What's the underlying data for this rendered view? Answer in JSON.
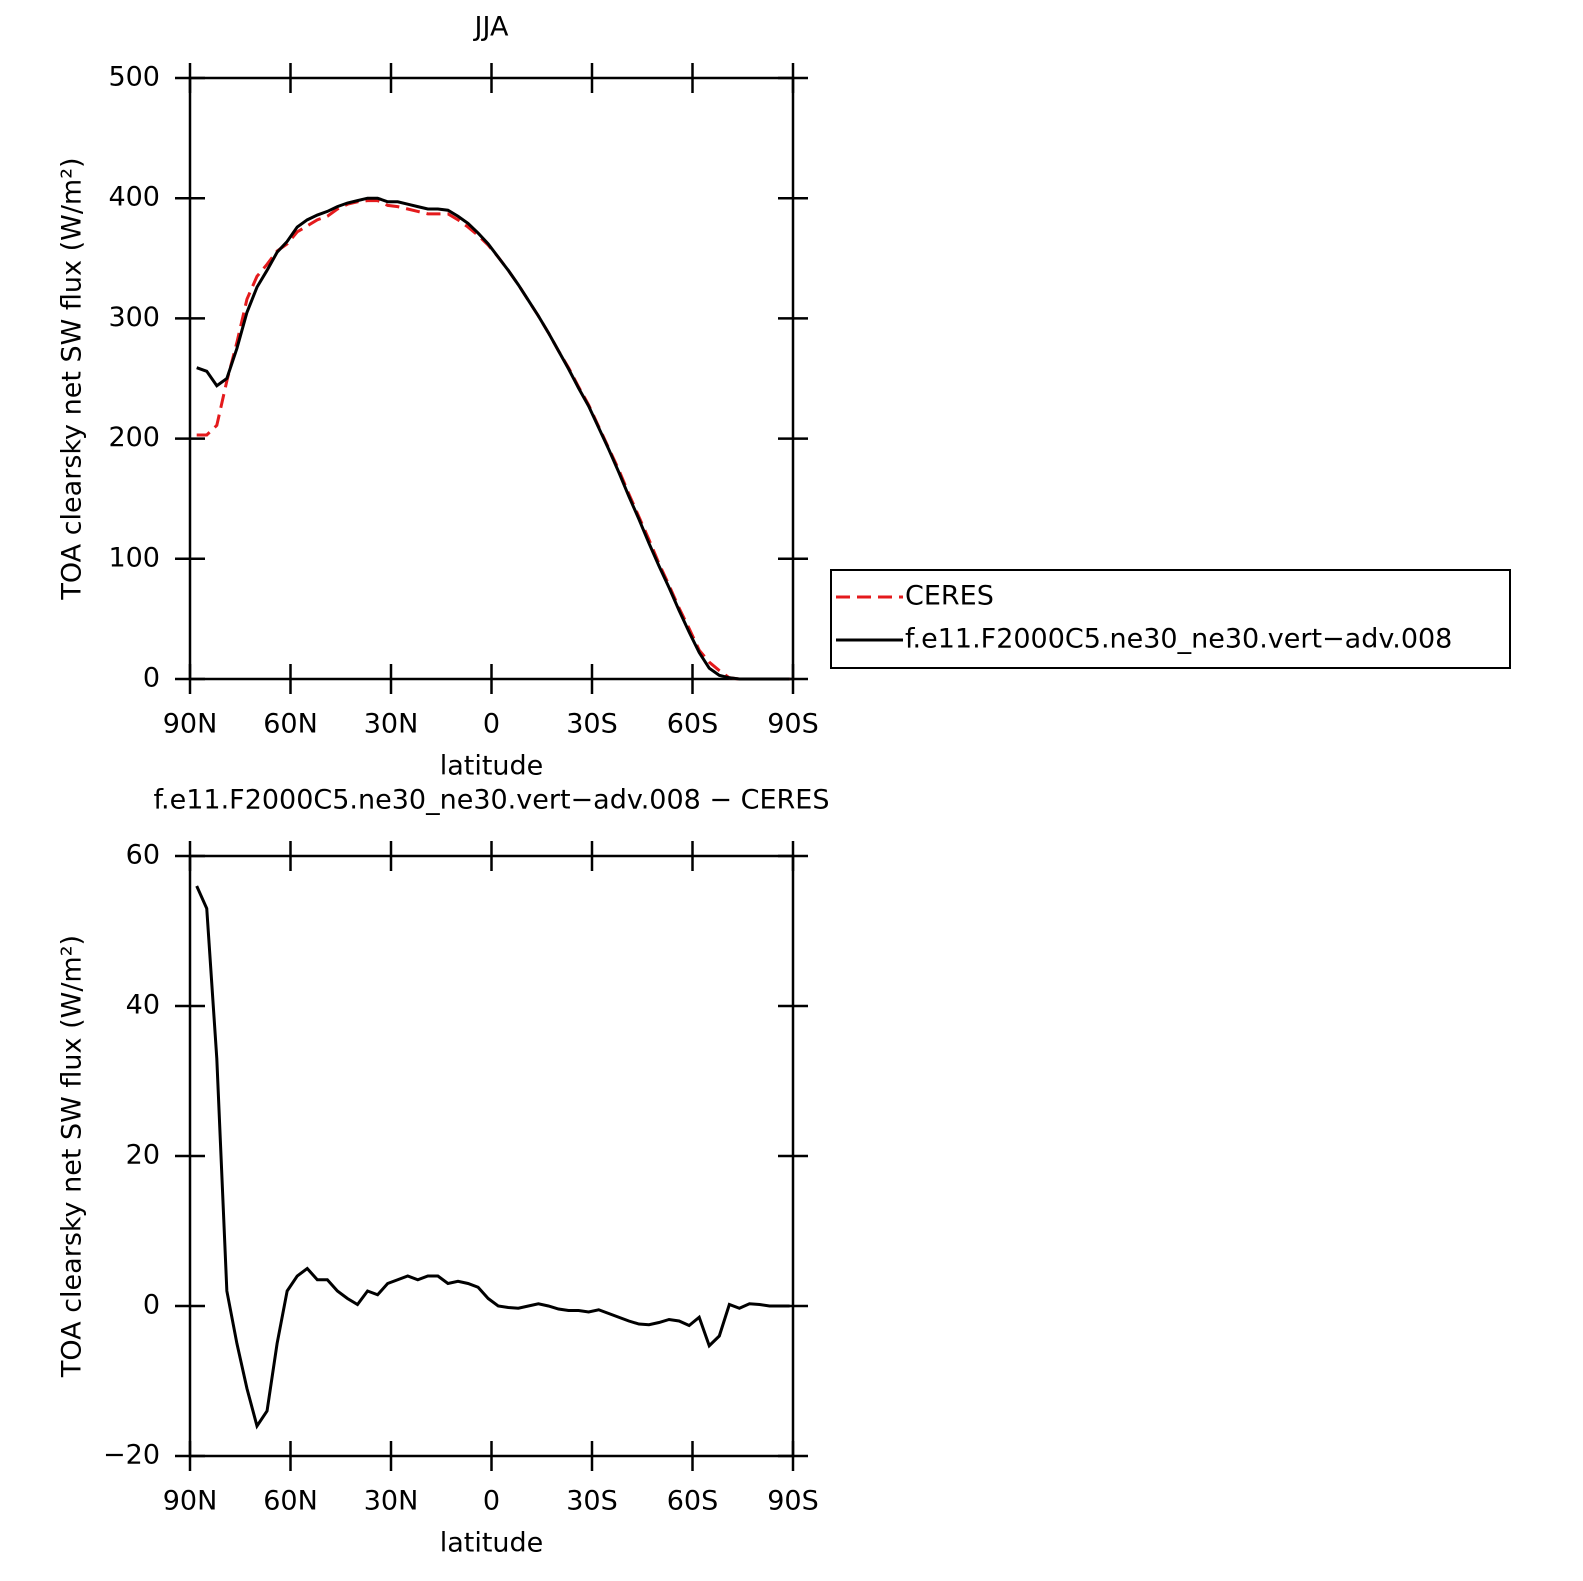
{
  "chart_data": [
    {
      "type": "line",
      "title": "JJA",
      "x_label": "latitude",
      "y_label": "TOA clearsky net SW flux (W/m²)",
      "x": [
        88,
        85,
        82,
        79,
        76,
        73,
        70,
        67,
        64,
        61,
        58,
        55,
        52,
        49,
        46,
        43,
        40,
        37,
        34,
        31,
        28,
        25,
        22,
        19,
        16,
        13,
        10,
        7,
        4,
        1,
        -2,
        -5,
        -8,
        -11,
        -14,
        -17,
        -20,
        -23,
        -26,
        -29,
        -32,
        -35,
        -38,
        -41,
        -44,
        -47,
        -50,
        -53,
        -56,
        -59,
        -62,
        -65,
        -68,
        -71,
        -74,
        -77,
        -80,
        -83,
        -86,
        -89
      ],
      "series": [
        {
          "name": "CERES",
          "color": "#e41a1c",
          "style": "dashed",
          "values": [
            203,
            203,
            211,
            248,
            280,
            316,
            335,
            345,
            356,
            362,
            372,
            377,
            382,
            385,
            391,
            395,
            397,
            398,
            398,
            394,
            393,
            391,
            389,
            387,
            387,
            387,
            382,
            376,
            369,
            361,
            351,
            340,
            328,
            315,
            302,
            288,
            273,
            259,
            243,
            228,
            210,
            192,
            174,
            154,
            135,
            116,
            96,
            78,
            59,
            42,
            24,
            14,
            7,
            1,
            0,
            0,
            0,
            0,
            0,
            0
          ]
        },
        {
          "name": "f.e11.F2000C5.ne30_ne30.vert−adv.008",
          "color": "#000000",
          "style": "solid",
          "values": [
            259,
            256,
            244,
            250,
            275,
            305,
            326,
            340,
            355,
            364,
            376,
            382,
            386,
            389,
            393,
            396,
            398,
            400,
            400,
            397,
            397,
            395,
            393,
            391,
            391,
            390,
            385,
            379,
            371,
            362,
            351,
            340,
            328,
            315,
            302,
            288,
            273,
            258,
            242,
            227,
            209,
            191,
            172,
            152,
            133,
            113,
            94,
            76,
            57,
            39,
            22,
            9,
            3,
            1,
            0,
            0,
            0,
            0,
            0,
            0
          ]
        }
      ],
      "xlim": [
        90,
        -90
      ],
      "xticks": [
        {
          "value": 90,
          "label": "90N"
        },
        {
          "value": 60,
          "label": "60N"
        },
        {
          "value": 30,
          "label": "30N"
        },
        0,
        {
          "value": -30,
          "label": "30S"
        },
        {
          "value": -60,
          "label": "60S"
        },
        {
          "value": -90,
          "label": "90S"
        }
      ],
      "ylim": [
        0,
        500
      ],
      "yticks": [
        0,
        100,
        200,
        300,
        400,
        500
      ],
      "legend": "right"
    },
    {
      "type": "line",
      "title": "f.e11.F2000C5.ne30_ne30.vert−adv.008 − CERES",
      "x_label": "latitude",
      "y_label": "TOA clearsky net SW flux (W/m²)",
      "x": [
        88,
        85,
        82,
        79,
        76,
        73,
        70,
        67,
        64,
        61,
        58,
        55,
        52,
        49,
        46,
        43,
        40,
        37,
        34,
        31,
        28,
        25,
        22,
        19,
        16,
        13,
        10,
        7,
        4,
        1,
        -2,
        -5,
        -8,
        -11,
        -14,
        -17,
        -20,
        -23,
        -26,
        -29,
        -32,
        -35,
        -38,
        -41,
        -44,
        -47,
        -50,
        -53,
        -56,
        -59,
        -62,
        -65,
        -68,
        -71,
        -74,
        -77,
        -80,
        -83,
        -86,
        -89
      ],
      "series": [
        {
          "color": "#000000",
          "style": "solid",
          "values": [
            56,
            53,
            33,
            2,
            -5,
            -11,
            -16,
            -14,
            -5,
            2,
            4,
            5,
            3.5,
            3.5,
            2,
            1,
            0.2,
            2,
            1.5,
            3,
            3.5,
            4,
            3.5,
            4,
            4,
            3,
            3.3,
            3,
            2.5,
            1,
            0,
            -0.2,
            -0.3,
            0,
            0.3,
            0,
            -0.4,
            -0.6,
            -0.6,
            -0.8,
            -0.5,
            -1,
            -1.5,
            -2,
            -2.4,
            -2.5,
            -2.2,
            -1.8,
            -2,
            -2.6,
            -1.5,
            -5.3,
            -4,
            0.2,
            -0.3,
            0.3,
            0.2,
            0,
            0,
            0
          ]
        }
      ],
      "xlim": [
        90,
        -90
      ],
      "xticks": [
        {
          "value": 90,
          "label": "90N"
        },
        {
          "value": 60,
          "label": "60N"
        },
        {
          "value": 30,
          "label": "30N"
        },
        0,
        {
          "value": -30,
          "label": "30S"
        },
        {
          "value": -60,
          "label": "60S"
        },
        {
          "value": -90,
          "label": "90S"
        }
      ],
      "ylim": [
        -20,
        60
      ],
      "yticks": [
        {
          "value": -20,
          "label": "−20"
        },
        0,
        20,
        40,
        60
      ]
    }
  ]
}
